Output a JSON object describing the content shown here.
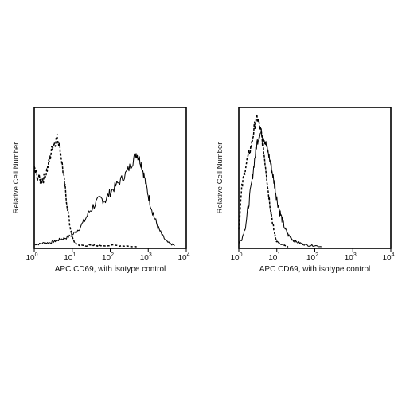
{
  "chart_data": [
    {
      "type": "line",
      "xscale": "log",
      "xlim": [
        1,
        10000
      ],
      "ylim": [
        0,
        1
      ],
      "xlabel": "APC CD69, with isotype control",
      "ylabel": "Relative Cell Number",
      "xticks": [
        {
          "base": "10",
          "exp": "0"
        },
        {
          "base": "10",
          "exp": "1"
        },
        {
          "base": "10",
          "exp": "2"
        },
        {
          "base": "10",
          "exp": "3"
        },
        {
          "base": "10",
          "exp": "4"
        }
      ],
      "grid": false,
      "series": [
        {
          "style": "solid",
          "x": [
            1.0,
            1.3,
            1.8,
            2.5,
            3.2,
            4.0,
            5.2,
            7.0,
            10,
            14,
            20,
            28,
            40,
            55,
            75,
            100,
            140,
            200,
            280,
            380,
            480,
            560,
            650,
            750,
            900,
            1100,
            1400,
            1800,
            2300,
            3000,
            4000,
            5000
          ],
          "y": [
            0.02,
            0.02,
            0.03,
            0.03,
            0.04,
            0.05,
            0.06,
            0.07,
            0.09,
            0.13,
            0.19,
            0.27,
            0.33,
            0.37,
            0.36,
            0.42,
            0.47,
            0.52,
            0.58,
            0.65,
            0.72,
            0.69,
            0.64,
            0.57,
            0.46,
            0.35,
            0.24,
            0.15,
            0.09,
            0.04,
            0.02,
            0.01
          ]
        },
        {
          "style": "dashed",
          "x": [
            1.0,
            1.2,
            1.5,
            1.8,
            2.2,
            2.6,
            3.0,
            3.5,
            4.0,
            4.5,
            5.2,
            6.0,
            7.0,
            8.5,
            10,
            12,
            15,
            20,
            30,
            50,
            100,
            200,
            500
          ],
          "y": [
            0.6,
            0.54,
            0.51,
            0.53,
            0.6,
            0.68,
            0.78,
            0.8,
            0.84,
            0.8,
            0.68,
            0.53,
            0.37,
            0.18,
            0.07,
            0.03,
            0.015,
            0.01,
            0.01,
            0.01,
            0.01,
            0.01,
            0.0
          ]
        }
      ]
    },
    {
      "type": "line",
      "xscale": "log",
      "xlim": [
        1,
        10000
      ],
      "ylim": [
        0,
        1
      ],
      "xlabel": "APC CD69, with isotype control",
      "ylabel": "Relative Cell Number",
      "xticks": [
        {
          "base": "10",
          "exp": "0"
        },
        {
          "base": "10",
          "exp": "1"
        },
        {
          "base": "10",
          "exp": "2"
        },
        {
          "base": "10",
          "exp": "3"
        },
        {
          "base": "10",
          "exp": "4"
        }
      ],
      "grid": false,
      "series": [
        {
          "style": "solid",
          "x": [
            1.0,
            1.2,
            1.5,
            1.8,
            2.2,
            2.6,
            3.0,
            3.5,
            4.0,
            4.6,
            5.3,
            6.0,
            7.0,
            8.0,
            9.0,
            10,
            12,
            14,
            17,
            20,
            25,
            30,
            40,
            50,
            70,
            100,
            150
          ],
          "y": [
            0.03,
            0.06,
            0.16,
            0.32,
            0.5,
            0.67,
            0.8,
            0.87,
            0.88,
            0.84,
            0.78,
            0.72,
            0.63,
            0.54,
            0.45,
            0.37,
            0.27,
            0.2,
            0.13,
            0.09,
            0.06,
            0.04,
            0.03,
            0.02,
            0.01,
            0.01,
            0.0
          ]
        },
        {
          "style": "dashed",
          "x": [
            1.0,
            1.2,
            1.5,
            1.8,
            2.2,
            2.6,
            3.0,
            3.5,
            4.0,
            4.6,
            5.3,
            6.0,
            7.0,
            8.0,
            9.0,
            10,
            12,
            15,
            20
          ],
          "y": [
            0.15,
            0.45,
            0.62,
            0.7,
            0.8,
            0.93,
            1.0,
            0.93,
            0.86,
            0.72,
            0.57,
            0.42,
            0.28,
            0.16,
            0.08,
            0.04,
            0.02,
            0.01,
            0.0
          ]
        }
      ]
    }
  ]
}
